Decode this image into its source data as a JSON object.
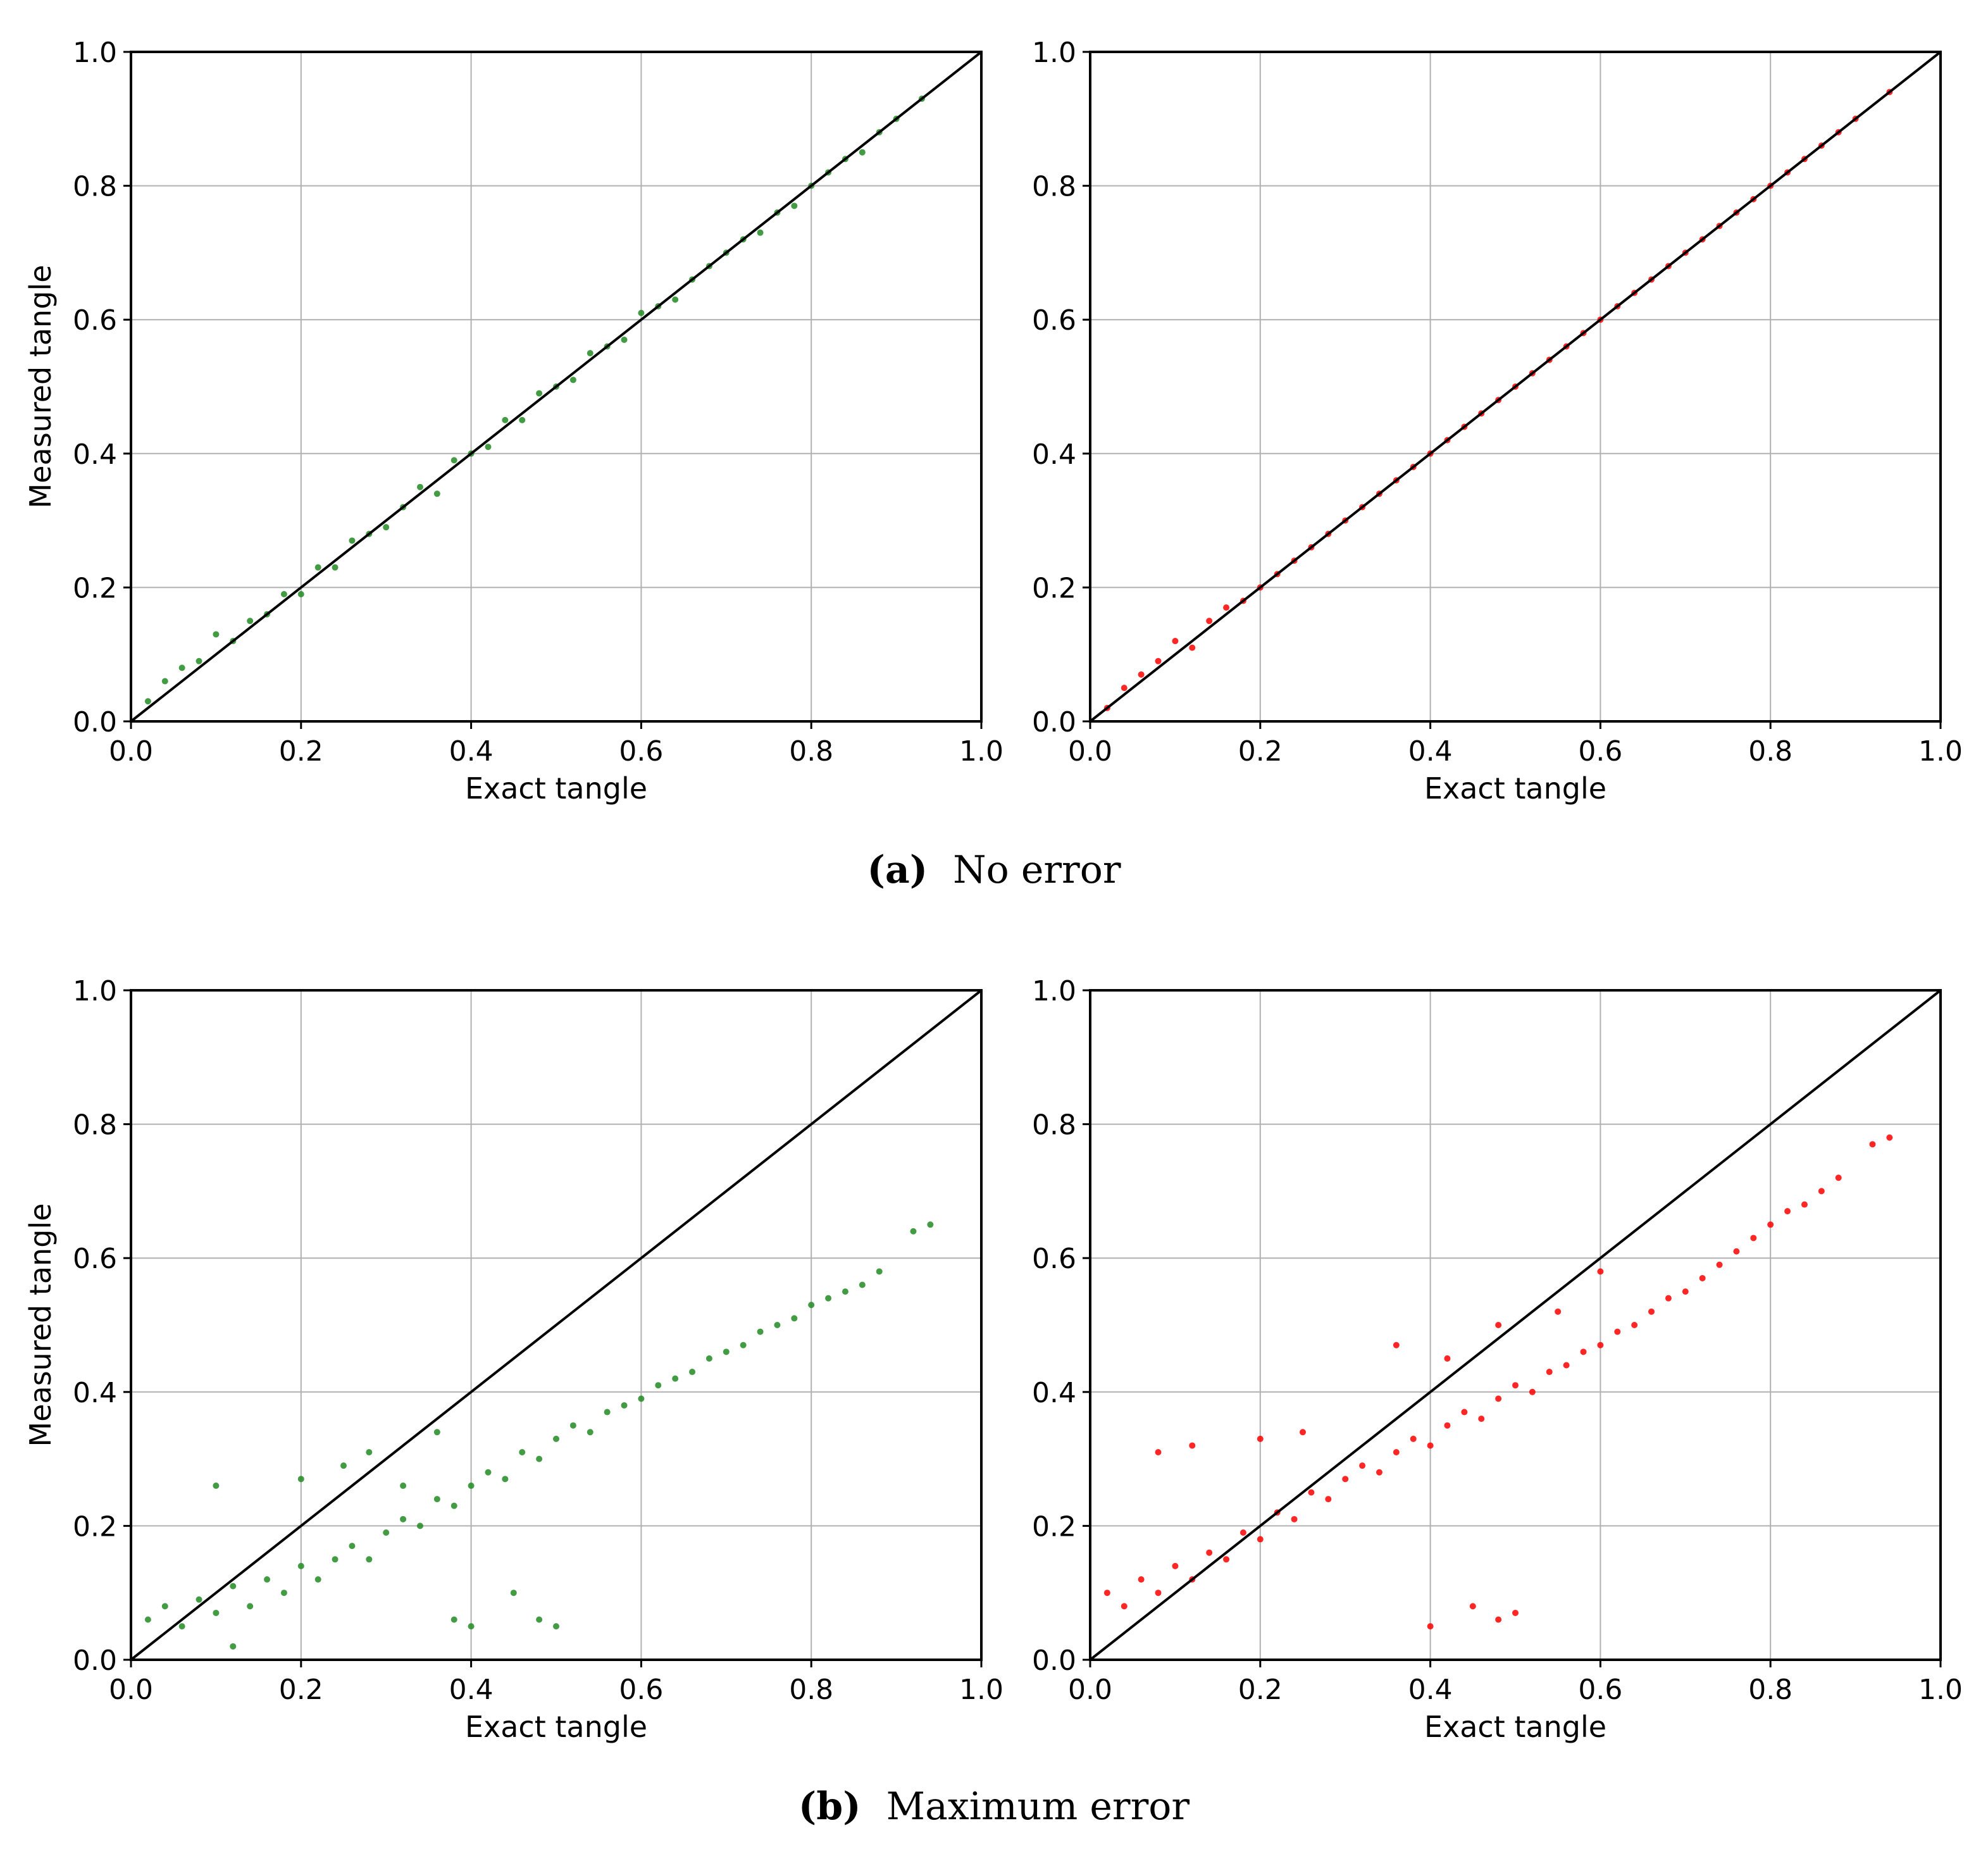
{
  "figure": {
    "panels": [
      {
        "letter": "(a)",
        "caption": "No error"
      },
      {
        "letter": "(b)",
        "caption": "Maximum error"
      }
    ],
    "colors": {
      "green": "#228b22",
      "red": "#ff0000",
      "grid": "#b0b0b0",
      "identity": "#000000"
    }
  },
  "chart_data": [
    {
      "type": "scatter",
      "panel": "a",
      "series_color": "green",
      "noise": "none",
      "xlabel": "Exact tangle",
      "ylabel": "Measured tangle",
      "xlim": [
        0,
        1
      ],
      "ylim": [
        0,
        1
      ],
      "grid": true,
      "xticks": [
        "0.0",
        "0.2",
        "0.4",
        "0.6",
        "0.8",
        "1.0"
      ],
      "yticks": [
        "0.0",
        "0.2",
        "0.4",
        "0.6",
        "0.8",
        "1.0"
      ],
      "reference_line": {
        "x": [
          0,
          1
        ],
        "y": [
          0,
          1
        ]
      },
      "points": [
        [
          0.02,
          0.03
        ],
        [
          0.04,
          0.06
        ],
        [
          0.06,
          0.08
        ],
        [
          0.08,
          0.09
        ],
        [
          0.1,
          0.13
        ],
        [
          0.12,
          0.12
        ],
        [
          0.14,
          0.15
        ],
        [
          0.16,
          0.16
        ],
        [
          0.18,
          0.19
        ],
        [
          0.2,
          0.19
        ],
        [
          0.22,
          0.23
        ],
        [
          0.24,
          0.23
        ],
        [
          0.26,
          0.27
        ],
        [
          0.28,
          0.28
        ],
        [
          0.3,
          0.29
        ],
        [
          0.32,
          0.32
        ],
        [
          0.34,
          0.35
        ],
        [
          0.36,
          0.34
        ],
        [
          0.38,
          0.39
        ],
        [
          0.4,
          0.4
        ],
        [
          0.42,
          0.41
        ],
        [
          0.44,
          0.45
        ],
        [
          0.46,
          0.45
        ],
        [
          0.48,
          0.49
        ],
        [
          0.5,
          0.5
        ],
        [
          0.52,
          0.51
        ],
        [
          0.54,
          0.55
        ],
        [
          0.56,
          0.56
        ],
        [
          0.58,
          0.57
        ],
        [
          0.6,
          0.61
        ],
        [
          0.62,
          0.62
        ],
        [
          0.64,
          0.63
        ],
        [
          0.66,
          0.66
        ],
        [
          0.68,
          0.68
        ],
        [
          0.7,
          0.7
        ],
        [
          0.72,
          0.72
        ],
        [
          0.74,
          0.73
        ],
        [
          0.76,
          0.76
        ],
        [
          0.78,
          0.77
        ],
        [
          0.8,
          0.8
        ],
        [
          0.82,
          0.82
        ],
        [
          0.84,
          0.84
        ],
        [
          0.86,
          0.85
        ],
        [
          0.88,
          0.88
        ],
        [
          0.9,
          0.9
        ],
        [
          0.93,
          0.93
        ]
      ]
    },
    {
      "type": "scatter",
      "panel": "a",
      "series_color": "red",
      "noise": "none",
      "xlabel": "Exact tangle",
      "ylabel": "",
      "xlim": [
        0,
        1
      ],
      "ylim": [
        0,
        1
      ],
      "grid": true,
      "xticks": [
        "0.0",
        "0.2",
        "0.4",
        "0.6",
        "0.8",
        "1.0"
      ],
      "yticks": [
        "0.0",
        "0.2",
        "0.4",
        "0.6",
        "0.8",
        "1.0"
      ],
      "reference_line": {
        "x": [
          0,
          1
        ],
        "y": [
          0,
          1
        ]
      },
      "points": [
        [
          0.02,
          0.02
        ],
        [
          0.04,
          0.05
        ],
        [
          0.06,
          0.07
        ],
        [
          0.08,
          0.09
        ],
        [
          0.1,
          0.12
        ],
        [
          0.12,
          0.11
        ],
        [
          0.14,
          0.15
        ],
        [
          0.16,
          0.17
        ],
        [
          0.18,
          0.18
        ],
        [
          0.2,
          0.2
        ],
        [
          0.22,
          0.22
        ],
        [
          0.24,
          0.24
        ],
        [
          0.26,
          0.26
        ],
        [
          0.28,
          0.28
        ],
        [
          0.3,
          0.3
        ],
        [
          0.32,
          0.32
        ],
        [
          0.34,
          0.34
        ],
        [
          0.36,
          0.36
        ],
        [
          0.38,
          0.38
        ],
        [
          0.4,
          0.4
        ],
        [
          0.42,
          0.42
        ],
        [
          0.44,
          0.44
        ],
        [
          0.46,
          0.46
        ],
        [
          0.48,
          0.48
        ],
        [
          0.5,
          0.5
        ],
        [
          0.52,
          0.52
        ],
        [
          0.54,
          0.54
        ],
        [
          0.56,
          0.56
        ],
        [
          0.58,
          0.58
        ],
        [
          0.6,
          0.6
        ],
        [
          0.62,
          0.62
        ],
        [
          0.64,
          0.64
        ],
        [
          0.66,
          0.66
        ],
        [
          0.68,
          0.68
        ],
        [
          0.7,
          0.7
        ],
        [
          0.72,
          0.72
        ],
        [
          0.74,
          0.74
        ],
        [
          0.76,
          0.76
        ],
        [
          0.78,
          0.78
        ],
        [
          0.8,
          0.8
        ],
        [
          0.82,
          0.82
        ],
        [
          0.84,
          0.84
        ],
        [
          0.86,
          0.86
        ],
        [
          0.88,
          0.88
        ],
        [
          0.9,
          0.9
        ],
        [
          0.94,
          0.94
        ]
      ]
    },
    {
      "type": "scatter",
      "panel": "b",
      "series_color": "green",
      "noise": "maximum",
      "xlabel": "Exact tangle",
      "ylabel": "Measured tangle",
      "xlim": [
        0,
        1
      ],
      "ylim": [
        0,
        1
      ],
      "grid": true,
      "xticks": [
        "0.0",
        "0.2",
        "0.4",
        "0.6",
        "0.8",
        "1.0"
      ],
      "yticks": [
        "0.0",
        "0.2",
        "0.4",
        "0.6",
        "0.8",
        "1.0"
      ],
      "reference_line": {
        "x": [
          0,
          1
        ],
        "y": [
          0,
          1
        ]
      },
      "points": [
        [
          0.02,
          0.06
        ],
        [
          0.04,
          0.08
        ],
        [
          0.06,
          0.05
        ],
        [
          0.08,
          0.09
        ],
        [
          0.1,
          0.07
        ],
        [
          0.12,
          0.11
        ],
        [
          0.14,
          0.08
        ],
        [
          0.16,
          0.12
        ],
        [
          0.18,
          0.1
        ],
        [
          0.2,
          0.14
        ],
        [
          0.22,
          0.12
        ],
        [
          0.24,
          0.15
        ],
        [
          0.26,
          0.17
        ],
        [
          0.28,
          0.15
        ],
        [
          0.3,
          0.19
        ],
        [
          0.32,
          0.21
        ],
        [
          0.34,
          0.2
        ],
        [
          0.36,
          0.24
        ],
        [
          0.38,
          0.23
        ],
        [
          0.4,
          0.26
        ],
        [
          0.42,
          0.28
        ],
        [
          0.44,
          0.27
        ],
        [
          0.46,
          0.31
        ],
        [
          0.48,
          0.3
        ],
        [
          0.5,
          0.33
        ],
        [
          0.52,
          0.35
        ],
        [
          0.54,
          0.34
        ],
        [
          0.56,
          0.37
        ],
        [
          0.58,
          0.38
        ],
        [
          0.6,
          0.39
        ],
        [
          0.62,
          0.41
        ],
        [
          0.64,
          0.42
        ],
        [
          0.66,
          0.43
        ],
        [
          0.68,
          0.45
        ],
        [
          0.7,
          0.46
        ],
        [
          0.72,
          0.47
        ],
        [
          0.74,
          0.49
        ],
        [
          0.76,
          0.5
        ],
        [
          0.78,
          0.51
        ],
        [
          0.8,
          0.53
        ],
        [
          0.82,
          0.54
        ],
        [
          0.84,
          0.55
        ],
        [
          0.86,
          0.56
        ],
        [
          0.88,
          0.58
        ],
        [
          0.92,
          0.64
        ],
        [
          0.94,
          0.65
        ],
        [
          0.1,
          0.26
        ],
        [
          0.12,
          0.02
        ],
        [
          0.2,
          0.27
        ],
        [
          0.25,
          0.29
        ],
        [
          0.28,
          0.31
        ],
        [
          0.32,
          0.26
        ],
        [
          0.36,
          0.34
        ],
        [
          0.38,
          0.06
        ],
        [
          0.4,
          0.05
        ],
        [
          0.45,
          0.1
        ],
        [
          0.48,
          0.06
        ],
        [
          0.5,
          0.05
        ]
      ]
    },
    {
      "type": "scatter",
      "panel": "b",
      "series_color": "red",
      "noise": "maximum",
      "xlabel": "Exact tangle",
      "ylabel": "",
      "xlim": [
        0,
        1
      ],
      "ylim": [
        0,
        1
      ],
      "grid": true,
      "xticks": [
        "0.0",
        "0.2",
        "0.4",
        "0.6",
        "0.8",
        "1.0"
      ],
      "yticks": [
        "0.0",
        "0.2",
        "0.4",
        "0.6",
        "0.8",
        "1.0"
      ],
      "reference_line": {
        "x": [
          0,
          1
        ],
        "y": [
          0,
          1
        ]
      },
      "points": [
        [
          0.02,
          0.1
        ],
        [
          0.04,
          0.08
        ],
        [
          0.06,
          0.12
        ],
        [
          0.08,
          0.1
        ],
        [
          0.1,
          0.14
        ],
        [
          0.12,
          0.12
        ],
        [
          0.14,
          0.16
        ],
        [
          0.16,
          0.15
        ],
        [
          0.18,
          0.19
        ],
        [
          0.2,
          0.18
        ],
        [
          0.22,
          0.22
        ],
        [
          0.24,
          0.21
        ],
        [
          0.26,
          0.25
        ],
        [
          0.28,
          0.24
        ],
        [
          0.3,
          0.27
        ],
        [
          0.32,
          0.29
        ],
        [
          0.34,
          0.28
        ],
        [
          0.36,
          0.31
        ],
        [
          0.38,
          0.33
        ],
        [
          0.4,
          0.32
        ],
        [
          0.42,
          0.35
        ],
        [
          0.44,
          0.37
        ],
        [
          0.46,
          0.36
        ],
        [
          0.48,
          0.39
        ],
        [
          0.5,
          0.41
        ],
        [
          0.52,
          0.4
        ],
        [
          0.54,
          0.43
        ],
        [
          0.56,
          0.44
        ],
        [
          0.58,
          0.46
        ],
        [
          0.6,
          0.47
        ],
        [
          0.62,
          0.49
        ],
        [
          0.64,
          0.5
        ],
        [
          0.66,
          0.52
        ],
        [
          0.68,
          0.54
        ],
        [
          0.7,
          0.55
        ],
        [
          0.72,
          0.57
        ],
        [
          0.74,
          0.59
        ],
        [
          0.76,
          0.61
        ],
        [
          0.78,
          0.63
        ],
        [
          0.8,
          0.65
        ],
        [
          0.82,
          0.67
        ],
        [
          0.84,
          0.68
        ],
        [
          0.86,
          0.7
        ],
        [
          0.88,
          0.72
        ],
        [
          0.92,
          0.77
        ],
        [
          0.94,
          0.78
        ],
        [
          0.08,
          0.31
        ],
        [
          0.12,
          0.32
        ],
        [
          0.2,
          0.33
        ],
        [
          0.25,
          0.34
        ],
        [
          0.36,
          0.47
        ],
        [
          0.42,
          0.45
        ],
        [
          0.48,
          0.5
        ],
        [
          0.55,
          0.52
        ],
        [
          0.6,
          0.58
        ],
        [
          0.4,
          0.05
        ],
        [
          0.45,
          0.08
        ],
        [
          0.48,
          0.06
        ],
        [
          0.5,
          0.07
        ]
      ]
    }
  ]
}
